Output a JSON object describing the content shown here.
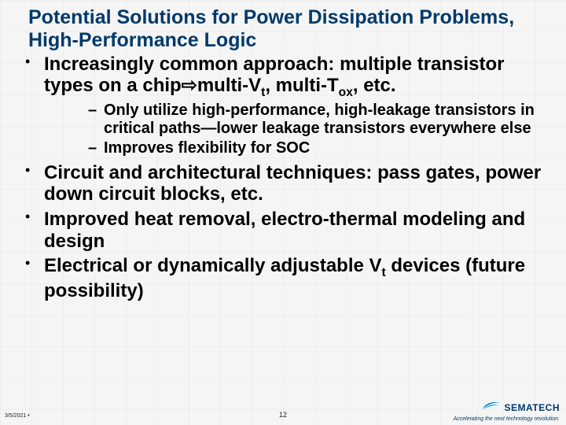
{
  "title": "Potential Solutions for Power Dissipation Problems, High-Performance Logic",
  "bullets": [
    {
      "text_html": "Increasingly common approach:  multiple transistor types on a chip<span class=\"arrow\">&#8680;</span>multi-V<sub>t</sub>, multi-T<sub>ox</sub>, etc.",
      "sub": [
        "Only utilize high-performance, high-leakage transistors in critical paths—lower leakage transistors everywhere else",
        "Improves flexibility for SOC"
      ]
    },
    {
      "text_html": "Circuit and architectural techniques:  pass gates, power down circuit blocks, etc."
    },
    {
      "text_html": "Improved heat removal, electro-thermal modeling and design"
    },
    {
      "text_html": "Electrical or dynamically adjustable V<sub>t</sub> devices (future possibility)"
    }
  ],
  "footer": {
    "date": "3/5/2021",
    "slide_number": "12",
    "logo_text": "SEMATECH",
    "tagline": "Accelerating the next technology revolution."
  },
  "colors": {
    "title": "#003a6a",
    "body": "#000000",
    "logo": "#003a6a",
    "swoosh_outer": "#007ac2",
    "swoosh_inner": "#00a9e0"
  }
}
